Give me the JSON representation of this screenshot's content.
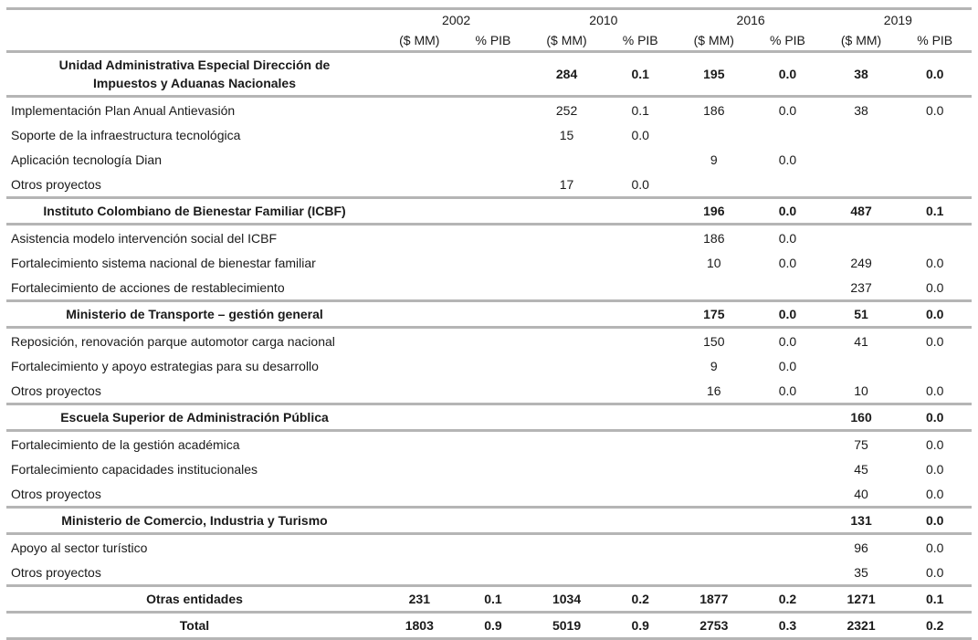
{
  "table": {
    "header": {
      "years": [
        "2002",
        "2010",
        "2016",
        "2019"
      ],
      "amount_label": "($ MM)",
      "share_label": "% PIB"
    },
    "rows": [
      {
        "type": "section",
        "wrap": true,
        "label": "Unidad Administrativa Especial Dirección de Impuestos y Aduanas Nacionales",
        "values": [
          "",
          "",
          "284",
          "0.1",
          "195",
          "0.0",
          "38",
          "0.0"
        ]
      },
      {
        "type": "item",
        "wrap": false,
        "label": "Implementación Plan Anual Antievasión",
        "values": [
          "",
          "",
          "252",
          "0.1",
          "186",
          "0.0",
          "38",
          "0.0"
        ]
      },
      {
        "type": "item",
        "wrap": false,
        "label": "Soporte de la infraestructura tecnológica",
        "values": [
          "",
          "",
          "15",
          "0.0",
          "",
          "",
          "",
          ""
        ]
      },
      {
        "type": "item",
        "wrap": false,
        "label": "Aplicación tecnología Dian",
        "values": [
          "",
          "",
          "",
          "",
          "9",
          "0.0",
          "",
          ""
        ]
      },
      {
        "type": "item",
        "wrap": false,
        "label": "Otros proyectos",
        "values": [
          "",
          "",
          "17",
          "0.0",
          "",
          "",
          "",
          ""
        ]
      },
      {
        "type": "section",
        "wrap": false,
        "label": "Instituto Colombiano de Bienestar Familiar (ICBF)",
        "values": [
          "",
          "",
          "",
          "",
          "196",
          "0.0",
          "487",
          "0.1"
        ]
      },
      {
        "type": "item",
        "wrap": false,
        "label": "Asistencia modelo intervención social del ICBF",
        "values": [
          "",
          "",
          "",
          "",
          "186",
          "0.0",
          "",
          ""
        ]
      },
      {
        "type": "item",
        "wrap": false,
        "label": "Fortalecimiento sistema nacional de bienestar familiar",
        "values": [
          "",
          "",
          "",
          "",
          "10",
          "0.0",
          "249",
          "0.0"
        ]
      },
      {
        "type": "item",
        "wrap": false,
        "label": "Fortalecimiento de acciones de restablecimiento",
        "values": [
          "",
          "",
          "",
          "",
          "",
          "",
          "237",
          "0.0"
        ]
      },
      {
        "type": "section",
        "wrap": false,
        "label": "Ministerio de Transporte – gestión general",
        "values": [
          "",
          "",
          "",
          "",
          "175",
          "0.0",
          "51",
          "0.0"
        ]
      },
      {
        "type": "item",
        "wrap": false,
        "label": "Reposición, renovación parque automotor carga nacional",
        "values": [
          "",
          "",
          "",
          "",
          "150",
          "0.0",
          "41",
          "0.0"
        ]
      },
      {
        "type": "item",
        "wrap": false,
        "label": "Fortalecimiento y apoyo estrategias para su desarrollo",
        "values": [
          "",
          "",
          "",
          "",
          "9",
          "0.0",
          "",
          ""
        ]
      },
      {
        "type": "item",
        "wrap": false,
        "label": "Otros proyectos",
        "values": [
          "",
          "",
          "",
          "",
          "16",
          "0.0",
          "10",
          "0.0"
        ]
      },
      {
        "type": "section",
        "wrap": false,
        "label": "Escuela Superior de Administración Pública",
        "values": [
          "",
          "",
          "",
          "",
          "",
          "",
          "160",
          "0.0"
        ]
      },
      {
        "type": "item",
        "wrap": false,
        "label": "Fortalecimiento de la gestión académica",
        "values": [
          "",
          "",
          "",
          "",
          "",
          "",
          "75",
          "0.0"
        ]
      },
      {
        "type": "item",
        "wrap": false,
        "label": "Fortalecimiento capacidades institucionales",
        "values": [
          "",
          "",
          "",
          "",
          "",
          "",
          "45",
          "0.0"
        ]
      },
      {
        "type": "item",
        "wrap": false,
        "label": "Otros proyectos",
        "values": [
          "",
          "",
          "",
          "",
          "",
          "",
          "40",
          "0.0"
        ]
      },
      {
        "type": "section",
        "wrap": false,
        "label": "Ministerio de Comercio, Industria y Turismo",
        "values": [
          "",
          "",
          "",
          "",
          "",
          "",
          "131",
          "0.0"
        ]
      },
      {
        "type": "item",
        "wrap": false,
        "label": "Apoyo al sector turístico",
        "values": [
          "",
          "",
          "",
          "",
          "",
          "",
          "96",
          "0.0"
        ]
      },
      {
        "type": "item",
        "wrap": false,
        "label": "Otros proyectos",
        "values": [
          "",
          "",
          "",
          "",
          "",
          "",
          "35",
          "0.0"
        ]
      },
      {
        "type": "section",
        "wrap": false,
        "label": "Otras entidades",
        "values": [
          "231",
          "0.1",
          "1034",
          "0.2",
          "1877",
          "0.2",
          "1271",
          "0.1"
        ]
      },
      {
        "type": "section",
        "wrap": false,
        "label": "Total",
        "values": [
          "1803",
          "0.9",
          "5019",
          "0.9",
          "2753",
          "0.3",
          "2321",
          "0.2"
        ]
      }
    ]
  },
  "colors": {
    "rule_gray": "#b5b5b5",
    "text": "#1a1a1a"
  }
}
